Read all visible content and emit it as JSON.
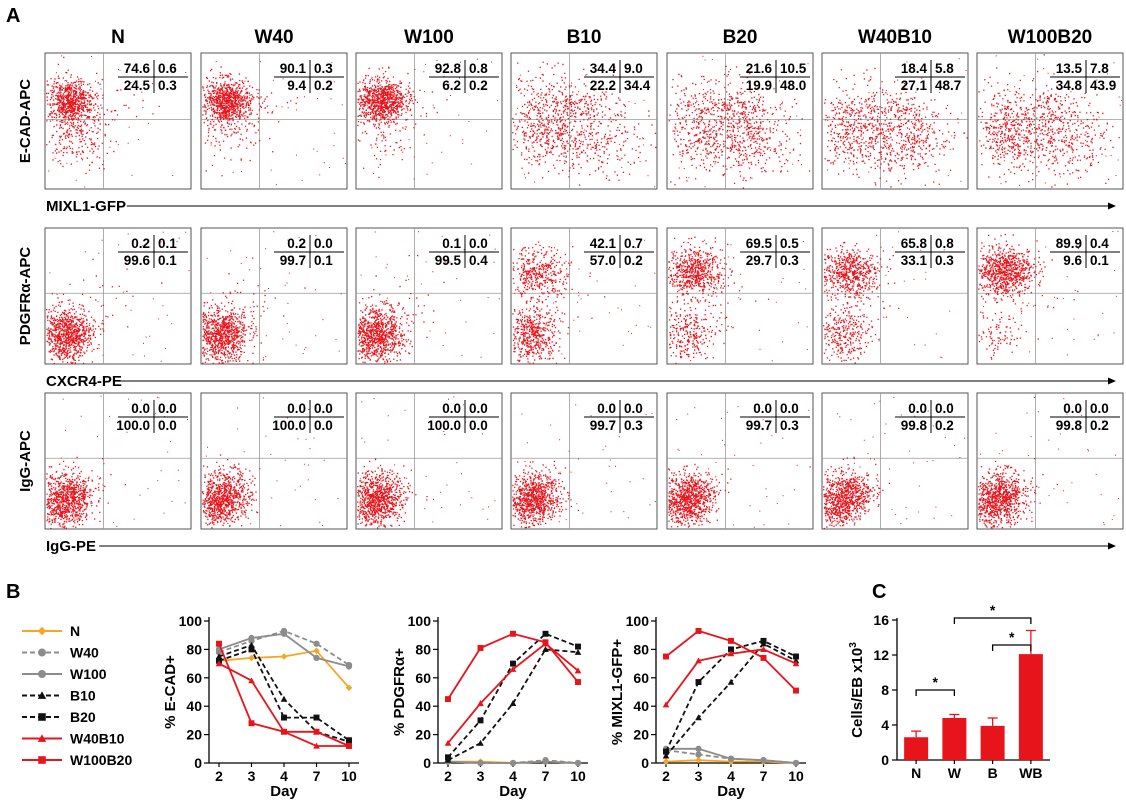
{
  "panel_a": {
    "letter": "A",
    "conditions": [
      "N",
      "W40",
      "W100",
      "B10",
      "B20",
      "W40B10",
      "W100B20"
    ],
    "rows": [
      {
        "y_axis_label": "E-CAD-APC",
        "x_axis_label": "MIXL1-GFP",
        "quadrants": [
          {
            "ul": "74.6",
            "ur": "0.6",
            "ll": "24.5",
            "lr": "0.3"
          },
          {
            "ul": "90.1",
            "ur": "0.3",
            "ll": "9.4",
            "lr": "0.2"
          },
          {
            "ul": "92.8",
            "ur": "0.8",
            "ll": "6.2",
            "lr": "0.2"
          },
          {
            "ul": "34.4",
            "ur": "9.0",
            "ll": "22.2",
            "lr": "34.4"
          },
          {
            "ul": "21.6",
            "ur": "10.5",
            "ll": "19.9",
            "lr": "48.0"
          },
          {
            "ul": "18.4",
            "ur": "5.8",
            "ll": "27.1",
            "lr": "48.7"
          },
          {
            "ul": "13.5",
            "ur": "7.8",
            "ll": "34.8",
            "lr": "43.9"
          }
        ]
      },
      {
        "y_axis_label": "PDGFRα-APC",
        "x_axis_label": "CXCR4-PE",
        "quadrants": [
          {
            "ul": "0.2",
            "ur": "0.1",
            "ll": "99.6",
            "lr": "0.1"
          },
          {
            "ul": "0.2",
            "ur": "0.0",
            "ll": "99.7",
            "lr": "0.1"
          },
          {
            "ul": "0.1",
            "ur": "0.0",
            "ll": "99.5",
            "lr": "0.4"
          },
          {
            "ul": "42.1",
            "ur": "0.7",
            "ll": "57.0",
            "lr": "0.2"
          },
          {
            "ul": "69.5",
            "ur": "0.5",
            "ll": "29.7",
            "lr": "0.3"
          },
          {
            "ul": "65.8",
            "ur": "0.8",
            "ll": "33.1",
            "lr": "0.3"
          },
          {
            "ul": "89.9",
            "ur": "0.4",
            "ll": "9.6",
            "lr": "0.1"
          }
        ]
      },
      {
        "y_axis_label": "IgG-APC",
        "x_axis_label": "IgG-PE",
        "quadrants": [
          {
            "ul": "0.0",
            "ur": "0.0",
            "ll": "100.0",
            "lr": "0.0"
          },
          {
            "ul": "0.0",
            "ur": "0.0",
            "ll": "100.0",
            "lr": "0.0"
          },
          {
            "ul": "0.0",
            "ur": "0.0",
            "ll": "100.0",
            "lr": "0.0"
          },
          {
            "ul": "0.0",
            "ur": "0.0",
            "ll": "99.7",
            "lr": "0.3"
          },
          {
            "ul": "0.0",
            "ur": "0.0",
            "ll": "99.7",
            "lr": "0.3"
          },
          {
            "ul": "0.0",
            "ur": "0.0",
            "ll": "99.8",
            "lr": "0.2"
          },
          {
            "ul": "0.0",
            "ur": "0.0",
            "ll": "99.8",
            "lr": "0.2"
          }
        ]
      }
    ],
    "dot_color": "#e8141b"
  },
  "panel_b": {
    "letter": "B"
  },
  "panel_c": {
    "letter": "C"
  },
  "chart_data": [
    {
      "type": "line",
      "ylabel": "% E-CAD+",
      "xlabel": "Day",
      "categories": [
        "2",
        "3",
        "4",
        "7",
        "10"
      ],
      "ylim": [
        0,
        100
      ],
      "yticks": [
        0,
        20,
        40,
        60,
        80,
        100
      ],
      "series": [
        {
          "name": "N",
          "values": [
            72,
            74,
            75,
            79,
            53
          ]
        },
        {
          "name": "W40",
          "values": [
            78,
            86,
            93,
            84,
            69
          ]
        },
        {
          "name": "W100",
          "values": [
            80,
            88,
            91,
            74,
            68
          ]
        },
        {
          "name": "B10",
          "values": [
            75,
            83,
            45,
            22,
            15
          ]
        },
        {
          "name": "B20",
          "values": [
            72,
            80,
            32,
            32,
            16
          ]
        },
        {
          "name": "W40B10",
          "values": [
            70,
            58,
            22,
            12,
            12
          ]
        },
        {
          "name": "W100B20",
          "values": [
            84,
            28,
            22,
            22,
            12
          ]
        }
      ]
    },
    {
      "type": "line",
      "ylabel": "% PDGFRα+",
      "xlabel": "Day",
      "categories": [
        "2",
        "3",
        "4",
        "7",
        "10"
      ],
      "ylim": [
        0,
        100
      ],
      "yticks": [
        0,
        20,
        40,
        60,
        80,
        100
      ],
      "series": [
        {
          "name": "N",
          "values": [
            1,
            1,
            0,
            1,
            0
          ]
        },
        {
          "name": "W40",
          "values": [
            1,
            0,
            0,
            2,
            0
          ]
        },
        {
          "name": "W100",
          "values": [
            1,
            0,
            0,
            1,
            0
          ]
        },
        {
          "name": "B10",
          "values": [
            2,
            14,
            42,
            80,
            78
          ]
        },
        {
          "name": "B20",
          "values": [
            4,
            30,
            70,
            91,
            82
          ]
        },
        {
          "name": "W40B10",
          "values": [
            14,
            42,
            66,
            84,
            65
          ]
        },
        {
          "name": "W100B20",
          "values": [
            45,
            81,
            91,
            85,
            57
          ]
        }
      ]
    },
    {
      "type": "line",
      "ylabel": "% MIXL1-GFP+",
      "xlabel": "Day",
      "categories": [
        "2",
        "3",
        "4",
        "7",
        "10"
      ],
      "ylim": [
        0,
        100
      ],
      "yticks": [
        0,
        20,
        40,
        60,
        80,
        100
      ],
      "series": [
        {
          "name": "N",
          "values": [
            1,
            2,
            1,
            1,
            0
          ]
        },
        {
          "name": "W40",
          "values": [
            9,
            6,
            3,
            2,
            0
          ]
        },
        {
          "name": "W100",
          "values": [
            10,
            10,
            3,
            2,
            0
          ]
        },
        {
          "name": "B10",
          "values": [
            5,
            32,
            57,
            84,
            72
          ]
        },
        {
          "name": "B20",
          "values": [
            8,
            57,
            80,
            86,
            75
          ]
        },
        {
          "name": "W40B10",
          "values": [
            41,
            72,
            77,
            80,
            70
          ]
        },
        {
          "name": "W100B20",
          "values": [
            75,
            93,
            86,
            74,
            51
          ]
        }
      ]
    },
    {
      "type": "bar",
      "ylabel": "Cells/EB x10",
      "ylabel_superscript": "3",
      "categories": [
        "N",
        "W",
        "B",
        "WB"
      ],
      "values": [
        2.6,
        4.8,
        3.9,
        12.1
      ],
      "errors": [
        0.7,
        0.4,
        0.9,
        2.7
      ],
      "ylim": [
        0,
        16
      ],
      "yticks": [
        0,
        4,
        8,
        12,
        16
      ],
      "bar_color": "#e8141b",
      "significance": [
        {
          "pair": [
            "N",
            "W"
          ],
          "label": "*"
        },
        {
          "pair": [
            "W",
            "WB"
          ],
          "label": "*"
        },
        {
          "pair": [
            "B",
            "WB"
          ],
          "label": "*"
        }
      ]
    }
  ],
  "legend": [
    {
      "name": "N",
      "color": "#f5a623",
      "dash": false,
      "marker": "diamond"
    },
    {
      "name": "W40",
      "color": "#8c8c8c",
      "dash": true,
      "marker": "circle"
    },
    {
      "name": "W100",
      "color": "#8c8c8c",
      "dash": false,
      "marker": "circle"
    },
    {
      "name": "B10",
      "color": "#111111",
      "dash": true,
      "marker": "triangle"
    },
    {
      "name": "B20",
      "color": "#111111",
      "dash": true,
      "marker": "square"
    },
    {
      "name": "W40B10",
      "color": "#e8141b",
      "dash": false,
      "marker": "triangle"
    },
    {
      "name": "W100B20",
      "color": "#e8141b",
      "dash": false,
      "marker": "square"
    }
  ]
}
